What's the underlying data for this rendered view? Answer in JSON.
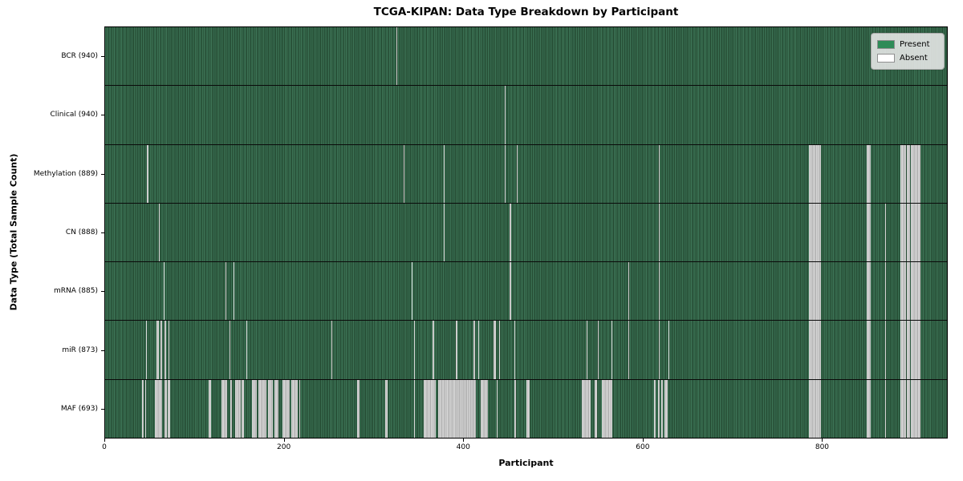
{
  "title": "TCGA-KIPAN: Data Type Breakdown by Participant",
  "xlabel": "Participant",
  "ylabel": "Data Type (Total Sample Count)",
  "colors": {
    "present_green": "#2e8b57",
    "absent_white": "#ffffff",
    "heatmap_green_dark": "#2b553b",
    "absent_gray_render": "#bcbcbc",
    "legend_bg": "#e9e9e9"
  },
  "chart_data": {
    "type": "heatmap",
    "title": "TCGA-KIPAN: Data Type Breakdown by Participant",
    "xlabel": "Participant",
    "ylabel": "Data Type (Total Sample Count)",
    "x_axis": {
      "range": [
        0,
        940
      ],
      "ticks": [
        0,
        200,
        400,
        600,
        800
      ]
    },
    "legend": [
      {
        "label": "Present",
        "color": "#2e8b57"
      },
      {
        "label": "Absent",
        "color": "#ffffff"
      }
    ],
    "legend_position": "upper right",
    "grid": false,
    "value_encoding": {
      "present": "green",
      "absent": "white"
    },
    "rows": [
      {
        "label": "BCR (940)",
        "data_type": "BCR",
        "present_count": 940,
        "absent_ranges": [
          [
            325,
            1
          ]
        ]
      },
      {
        "label": "Clinical (940)",
        "data_type": "Clinical",
        "present_count": 940,
        "absent_ranges": [
          [
            446,
            1
          ]
        ]
      },
      {
        "label": "Methylation (889)",
        "data_type": "Methylation",
        "present_count": 889,
        "absent_ranges": [
          [
            47,
            1
          ],
          [
            333,
            1
          ],
          [
            378,
            1
          ],
          [
            446,
            1
          ],
          [
            460,
            1
          ],
          [
            618,
            1
          ],
          [
            786,
            13
          ],
          [
            850,
            5
          ],
          [
            888,
            6
          ],
          [
            895,
            4
          ],
          [
            900,
            10
          ]
        ]
      },
      {
        "label": "CN (888)",
        "data_type": "CN",
        "present_count": 888,
        "absent_ranges": [
          [
            60,
            1
          ],
          [
            378,
            1
          ],
          [
            452,
            1
          ],
          [
            618,
            1
          ],
          [
            786,
            13
          ],
          [
            850,
            5
          ],
          [
            871,
            1
          ],
          [
            888,
            6
          ],
          [
            895,
            4
          ],
          [
            900,
            10
          ]
        ]
      },
      {
        "label": "mRNA (885)",
        "data_type": "mRNA",
        "present_count": 885,
        "absent_ranges": [
          [
            65,
            1
          ],
          [
            134,
            1
          ],
          [
            143,
            1
          ],
          [
            342,
            1
          ],
          [
            452,
            1
          ],
          [
            584,
            1
          ],
          [
            618,
            1
          ],
          [
            786,
            13
          ],
          [
            850,
            5
          ],
          [
            871,
            1
          ],
          [
            888,
            6
          ],
          [
            895,
            4
          ],
          [
            900,
            10
          ]
        ]
      },
      {
        "label": "miR (873)",
        "data_type": "miR",
        "present_count": 873,
        "absent_ranges": [
          [
            46,
            1
          ],
          [
            57,
            3
          ],
          [
            62,
            2
          ],
          [
            66,
            2
          ],
          [
            71,
            1
          ],
          [
            139,
            1
          ],
          [
            158,
            1
          ],
          [
            253,
            1
          ],
          [
            345,
            1
          ],
          [
            366,
            1
          ],
          [
            392,
            1
          ],
          [
            411,
            2
          ],
          [
            417,
            1
          ],
          [
            434,
            2
          ],
          [
            440,
            1
          ],
          [
            457,
            1
          ],
          [
            538,
            1
          ],
          [
            550,
            1
          ],
          [
            565,
            1
          ],
          [
            584,
            1
          ],
          [
            618,
            1
          ],
          [
            629,
            1
          ],
          [
            786,
            13
          ],
          [
            850,
            5
          ],
          [
            871,
            1
          ],
          [
            888,
            6
          ],
          [
            895,
            4
          ],
          [
            900,
            10
          ]
        ]
      },
      {
        "label": "MAF (693)",
        "data_type": "MAF",
        "present_count": 693,
        "absent_ranges": [
          [
            41,
            2
          ],
          [
            45,
            1
          ],
          [
            56,
            8
          ],
          [
            66,
            3
          ],
          [
            70,
            3
          ],
          [
            116,
            2
          ],
          [
            130,
            6
          ],
          [
            140,
            2
          ],
          [
            145,
            6
          ],
          [
            152,
            3
          ],
          [
            164,
            5
          ],
          [
            171,
            9
          ],
          [
            182,
            5
          ],
          [
            189,
            5
          ],
          [
            198,
            8
          ],
          [
            208,
            7
          ],
          [
            217,
            1
          ],
          [
            281,
            3
          ],
          [
            313,
            2
          ],
          [
            345,
            1
          ],
          [
            356,
            13
          ],
          [
            372,
            42
          ],
          [
            419,
            8
          ],
          [
            437,
            1
          ],
          [
            457,
            2
          ],
          [
            470,
            4
          ],
          [
            532,
            10
          ],
          [
            547,
            2
          ],
          [
            555,
            11
          ],
          [
            613,
            2
          ],
          [
            617,
            2
          ],
          [
            621,
            2
          ],
          [
            625,
            3
          ],
          [
            786,
            13
          ],
          [
            850,
            5
          ],
          [
            871,
            1
          ],
          [
            888,
            6
          ],
          [
            895,
            4
          ],
          [
            900,
            10
          ]
        ]
      }
    ]
  }
}
